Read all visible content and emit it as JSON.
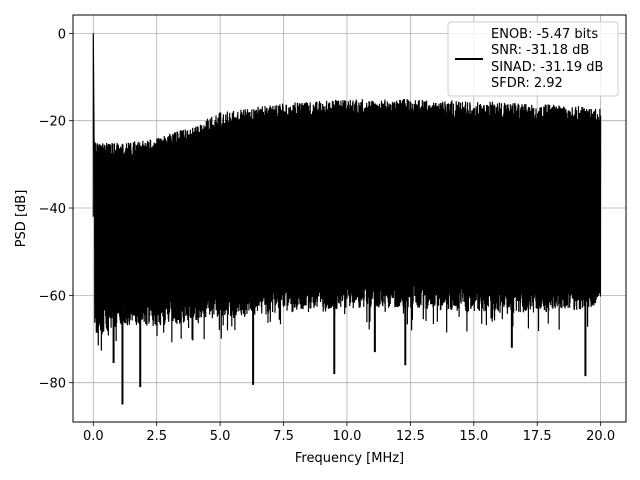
{
  "chart_data": {
    "type": "line",
    "title": "",
    "xlabel": "Frequency [MHz]",
    "ylabel": "PSD [dB]",
    "xlim": [
      -0.8,
      21.0
    ],
    "ylim": [
      -89,
      4.2
    ],
    "grid": true,
    "legend_position": "top-right",
    "x_ticks": [
      0.0,
      2.5,
      5.0,
      7.5,
      10.0,
      12.5,
      15.0,
      17.5,
      20.0
    ],
    "x_tick_labels": [
      "0.0",
      "2.5",
      "5.0",
      "7.5",
      "10.0",
      "12.5",
      "15.0",
      "17.5",
      "20.0"
    ],
    "y_ticks": [
      0,
      -20,
      -40,
      -60,
      -80
    ],
    "y_tick_labels": [
      "0",
      "−20",
      "−40",
      "−60",
      "−80"
    ],
    "series": [
      {
        "color": "#000000",
        "x_range": [
          0.0,
          20.0
        ],
        "peak": {
          "x": 0.0,
          "y": 0.0
        },
        "upper_envelope": {
          "x": [
            0.05,
            1.0,
            2.5,
            4.0,
            5.0,
            7.5,
            10.0,
            12.5,
            15.0,
            17.5,
            20.0
          ],
          "y": [
            -25,
            -25,
            -24,
            -21,
            -18,
            -16,
            -15,
            -15,
            -15.5,
            -16,
            -17
          ]
        },
        "lower_envelope": {
          "x": [
            0.05,
            1.0,
            2.5,
            5.0,
            7.5,
            10.0,
            12.5,
            15.0,
            17.5,
            20.0
          ],
          "y": [
            -66,
            -63,
            -63,
            -61,
            -60,
            -59,
            -59,
            -60,
            -60,
            -59
          ]
        },
        "deep_dips": [
          {
            "x": 1.15,
            "y": -85
          },
          {
            "x": 1.85,
            "y": -81
          },
          {
            "x": 6.3,
            "y": -80.5
          },
          {
            "x": 9.5,
            "y": -78
          },
          {
            "x": 0.8,
            "y": -75.5
          },
          {
            "x": 12.3,
            "y": -76
          },
          {
            "x": 19.4,
            "y": -78.5
          },
          {
            "x": 11.1,
            "y": -73
          },
          {
            "x": 16.5,
            "y": -72
          }
        ]
      }
    ],
    "legend": {
      "lines": [
        "ENOB: -5.47 bits",
        "SNR: -31.18 dB",
        "SINAD: -31.19 dB",
        "SFDR: 2.92"
      ]
    }
  }
}
